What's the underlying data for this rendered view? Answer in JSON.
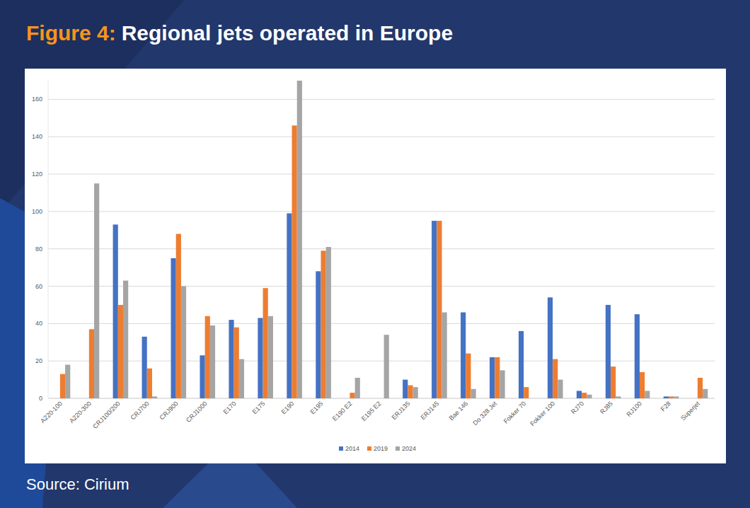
{
  "chart_data": {
    "type": "bar",
    "figure_label": "Figure 4:",
    "title": "Regional jets operated in Europe",
    "source": "Source: Cirium",
    "categories": [
      "A220-100",
      "A220-300",
      "CRJ100/200",
      "CRJ700",
      "CRJ900",
      "CRJ1000",
      "E170",
      "E175",
      "E190",
      "E195",
      "E190 E2",
      "E195 E2",
      "ERJ135",
      "ERJ145",
      "Bae 146",
      "Do 328 Jet",
      "Fokker 70",
      "Fokker 100",
      "RJ70",
      "RJ85",
      "RJ100",
      "F28",
      "Superjet"
    ],
    "series": [
      {
        "name": "2014",
        "color": "#4472c4",
        "values": [
          0,
          0,
          93,
          33,
          75,
          23,
          42,
          43,
          99,
          68,
          0,
          0,
          10,
          95,
          46,
          22,
          36,
          54,
          4,
          50,
          45,
          1,
          0
        ]
      },
      {
        "name": "2019",
        "color": "#ed7d31",
        "values": [
          13,
          37,
          50,
          16,
          88,
          44,
          38,
          59,
          146,
          79,
          3,
          0,
          7,
          95,
          24,
          22,
          6,
          21,
          3,
          17,
          14,
          1,
          11
        ]
      },
      {
        "name": "2024",
        "color": "#a5a5a5",
        "values": [
          18,
          115,
          63,
          1,
          60,
          39,
          21,
          44,
          170,
          81,
          11,
          34,
          6,
          46,
          5,
          15,
          0,
          10,
          2,
          1,
          4,
          1,
          5
        ]
      }
    ],
    "ylim": [
      0,
      170
    ],
    "yticks": [
      0,
      20,
      40,
      60,
      80,
      100,
      120,
      140,
      160
    ],
    "grid": true,
    "legend": "bottom"
  }
}
